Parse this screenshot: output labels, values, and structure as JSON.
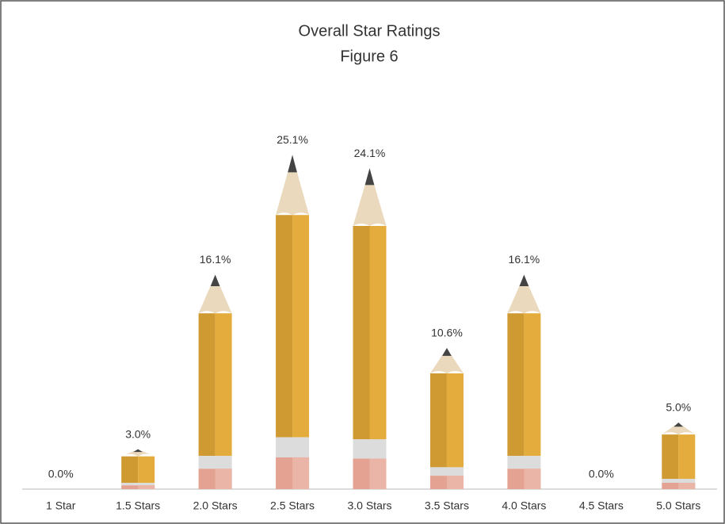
{
  "chart_data": {
    "type": "bar",
    "title": "Overall Star Ratings",
    "subtitle": "Figure 6",
    "categories": [
      "1 Star",
      "1.5 Stars",
      "2.0 Stars",
      "2.5 Stars",
      "3.0 Stars",
      "3.5 Stars",
      "4.0 Stars",
      "4.5 Stars",
      "5.0 Stars"
    ],
    "values": [
      0,
      3.0,
      16.1,
      25.1,
      24.1,
      10.6,
      16.1,
      0,
      5.0
    ],
    "value_labels": [
      "0.0%",
      "3.0%",
      "16.1%",
      "25.1%",
      "24.1%",
      "10.6%",
      "16.1%",
      "0.0%",
      "5.0%"
    ],
    "color": "#e3ac3c"
  }
}
